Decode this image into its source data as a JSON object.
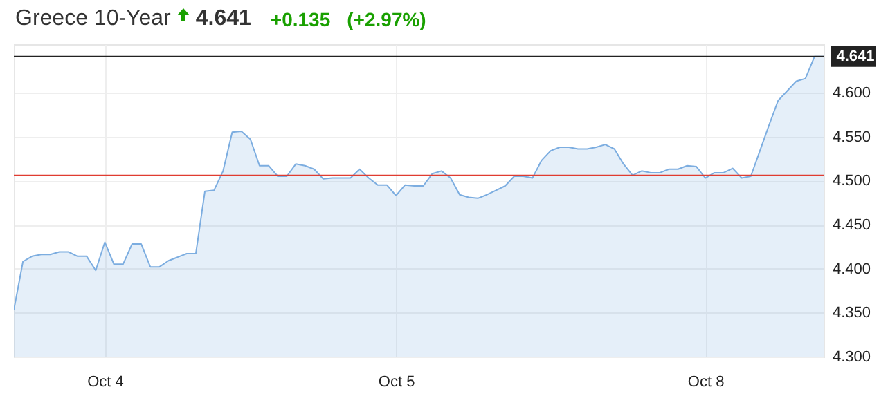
{
  "chart_data": {
    "type": "area",
    "title": "Greece 10-Year",
    "annotations": [
      "4.641",
      "+0.135",
      "(+2.97%)"
    ],
    "categories": [
      null,
      null,
      null,
      null,
      null,
      null,
      null,
      null,
      null,
      null,
      "Oct 4",
      null,
      null,
      null,
      null,
      null,
      null,
      null,
      null,
      null,
      null,
      null,
      null,
      null,
      null,
      null,
      null,
      null,
      null,
      null,
      null,
      null,
      null,
      null,
      null,
      null,
      null,
      null,
      null,
      null,
      null,
      null,
      "Oct 5",
      null,
      null,
      null,
      null,
      null,
      null,
      null,
      null,
      null,
      null,
      null,
      null,
      null,
      null,
      null,
      null,
      null,
      null,
      null,
      null,
      null,
      null,
      null,
      null,
      null,
      null,
      null,
      null,
      null,
      null,
      null,
      null,
      null,
      "Oct 8",
      null,
      null,
      null,
      null,
      null,
      null,
      null,
      null,
      null,
      null,
      null,
      null,
      null
    ],
    "series": [
      {
        "color": "#7cade0",
        "values": [
          4.353,
          4.408,
          4.414,
          4.416,
          4.416,
          4.419,
          4.419,
          4.414,
          4.414,
          4.398,
          4.43,
          4.405,
          4.405,
          4.428,
          4.428,
          4.402,
          4.402,
          4.409,
          4.413,
          4.417,
          4.417,
          4.488,
          4.489,
          4.511,
          4.555,
          4.556,
          4.547,
          4.517,
          4.517,
          4.505,
          4.505,
          4.519,
          4.517,
          4.513,
          4.502,
          4.503,
          4.503,
          4.503,
          4.513,
          4.503,
          4.495,
          4.495,
          4.483,
          4.495,
          4.494,
          4.494,
          4.508,
          4.511,
          4.503,
          4.484,
          4.481,
          4.48,
          4.484,
          4.489,
          4.494,
          4.505,
          4.505,
          4.503,
          4.523,
          4.534,
          4.538,
          4.538,
          4.536,
          4.536,
          4.538,
          4.541,
          4.536,
          4.519,
          4.506,
          4.511,
          4.509,
          4.509,
          4.513,
          4.513,
          4.517,
          4.516,
          4.503,
          4.509,
          4.509,
          4.514,
          4.503,
          4.505,
          4.534,
          4.563,
          4.591,
          4.602,
          4.613,
          4.616,
          4.641,
          4.641
        ]
      }
    ],
    "ylim": [
      4.3,
      4.655
    ],
    "yticks": [
      {
        "value": 4.3,
        "label": "4.300"
      },
      {
        "value": 4.35,
        "label": "4.350"
      },
      {
        "value": 4.4,
        "label": "4.400"
      },
      {
        "value": 4.45,
        "label": "4.450"
      },
      {
        "value": 4.5,
        "label": "4.500"
      },
      {
        "value": 4.55,
        "label": "4.550"
      },
      {
        "value": 4.6,
        "label": "4.600"
      }
    ],
    "ref_lines": [
      {
        "axis": "y",
        "value": 4.506,
        "color": "#e03c31"
      },
      {
        "axis": "y",
        "value": 4.641,
        "label": "4.641",
        "color": "#222222"
      }
    ],
    "grid": true
  }
}
